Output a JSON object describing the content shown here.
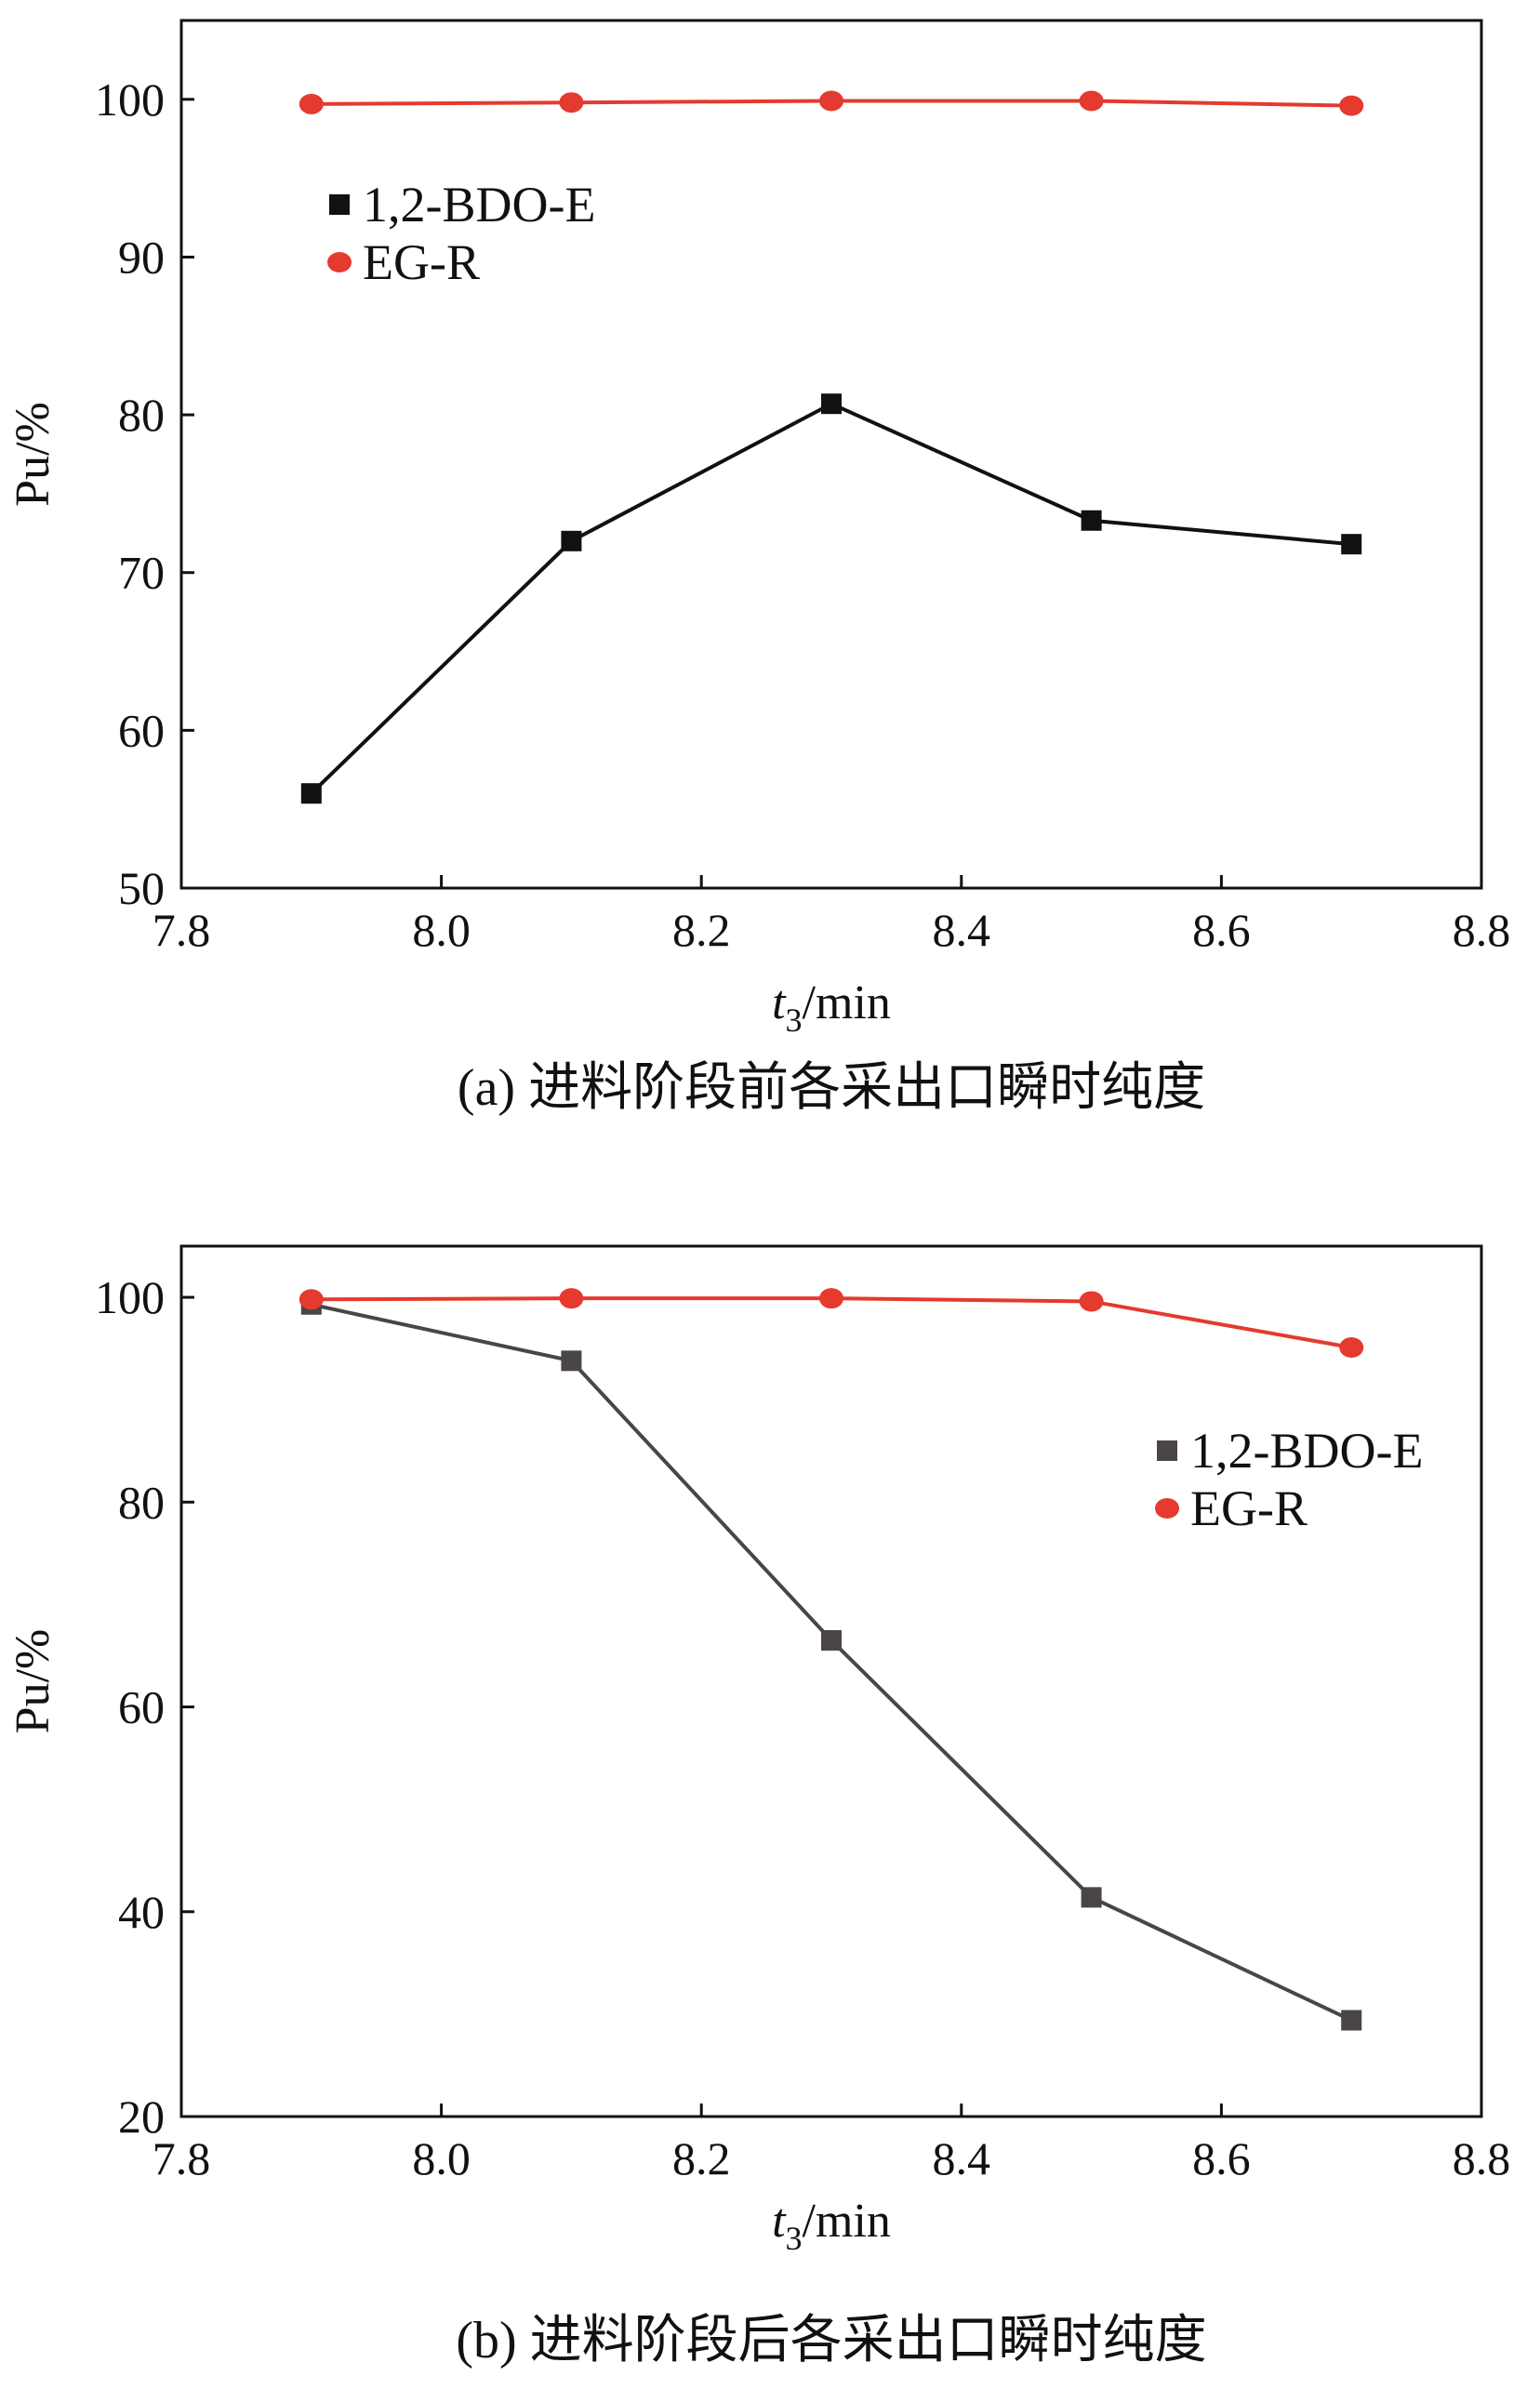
{
  "chart_data": [
    {
      "type": "line",
      "caption": "(a) 进料阶段前各采出口瞬时纯度",
      "xlabel": "t3/min",
      "xlabel_parts": {
        "var": "t",
        "sub": "3",
        "unit": "/min"
      },
      "ylabel": "Pu/%",
      "xlim": [
        7.8,
        8.8
      ],
      "ylim": [
        50,
        105
      ],
      "xticks": [
        7.8,
        8.0,
        8.2,
        8.4,
        8.6,
        8.8
      ],
      "xtick_labels": [
        "7.8",
        "8.0",
        "8.2",
        "8.4",
        "8.6",
        "8.8"
      ],
      "yticks": [
        50,
        60,
        70,
        80,
        90,
        100
      ],
      "ytick_labels": [
        "50",
        "60",
        "70",
        "80",
        "90",
        "100"
      ],
      "legend_position": "top-left",
      "grid": false,
      "x": [
        7.9,
        8.1,
        8.3,
        8.5,
        8.7
      ],
      "series": [
        {
          "name": "1,2-BDO-E",
          "marker": "square",
          "color": "#111111",
          "values": [
            56.0,
            72.0,
            80.7,
            73.3,
            71.8
          ]
        },
        {
          "name": "EG-R",
          "marker": "circle",
          "color": "#e53a2f",
          "values": [
            99.7,
            99.8,
            99.9,
            99.9,
            99.6
          ]
        }
      ]
    },
    {
      "type": "line",
      "caption": "(b) 进料阶段后各采出口瞬时纯度",
      "xlabel": "t3/min",
      "xlabel_parts": {
        "var": "t",
        "sub": "3",
        "unit": "/min"
      },
      "ylabel": "Pu/%",
      "xlim": [
        7.8,
        8.8
      ],
      "ylim": [
        20,
        105
      ],
      "xticks": [
        7.8,
        8.0,
        8.2,
        8.4,
        8.6,
        8.8
      ],
      "xtick_labels": [
        "7.8",
        "8.0",
        "8.2",
        "8.4",
        "8.6",
        "8.8"
      ],
      "yticks": [
        20,
        40,
        60,
        80,
        100
      ],
      "ytick_labels": [
        "20",
        "40",
        "60",
        "80",
        "100"
      ],
      "legend_position": "right",
      "grid": false,
      "x": [
        7.9,
        8.1,
        8.3,
        8.5,
        8.7
      ],
      "series": [
        {
          "name": "1,2-BDO-E",
          "marker": "square",
          "color": "#4a4646",
          "values": [
            99.3,
            93.8,
            66.5,
            41.4,
            29.4
          ]
        },
        {
          "name": "EG-R",
          "marker": "circle",
          "color": "#e53a2f",
          "values": [
            99.8,
            99.9,
            99.9,
            99.6,
            95.1
          ]
        }
      ]
    }
  ]
}
